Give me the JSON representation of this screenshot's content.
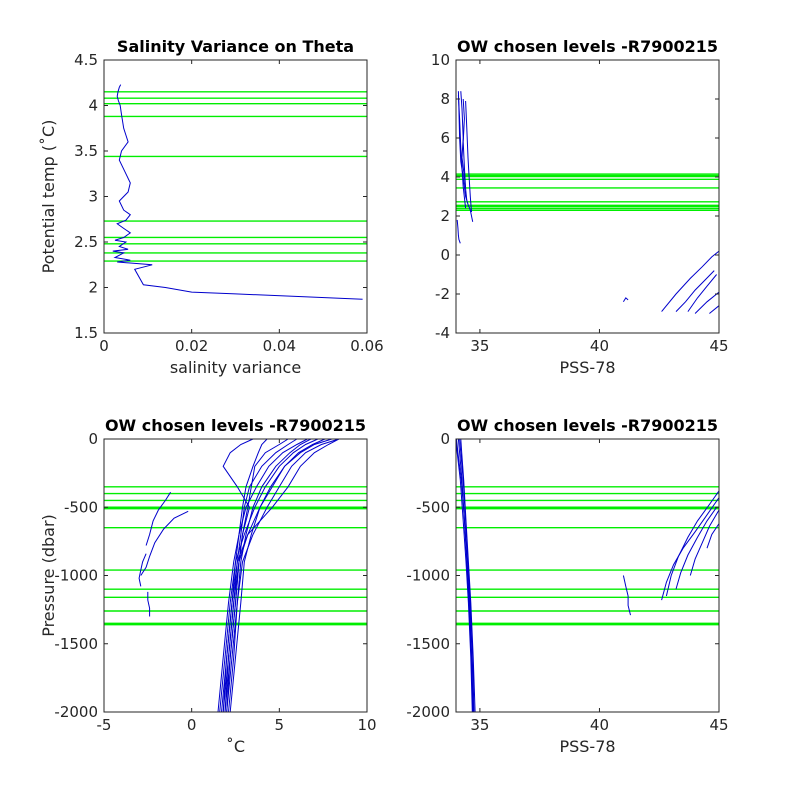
{
  "colors": {
    "profile": "#0000cc",
    "chosen_level": "#00ee00",
    "axis": "#262626",
    "background": "#ffffff"
  },
  "chart_data": [
    {
      "id": "p1",
      "type": "line",
      "title": "Salinity Variance on Theta",
      "xlabel": "salinity variance",
      "ylabel": "Potential temp (˚C)",
      "xlim": [
        0,
        0.06
      ],
      "ylim": [
        1.5,
        4.5
      ],
      "xticks": [
        0,
        0.02,
        0.04,
        0.06
      ],
      "xtick_labels": [
        "0",
        "0.02",
        "0.04",
        "0.06"
      ],
      "yticks": [
        1.5,
        2,
        2.5,
        3,
        3.5,
        4,
        4.5
      ],
      "ytick_labels": [
        "1.5",
        "2",
        "2.5",
        "3",
        "3.5",
        "4",
        "4.5"
      ],
      "grid": false,
      "chosen_levels": [
        4.15,
        4.08,
        4.02,
        3.88,
        3.44,
        2.73,
        2.55,
        2.48,
        2.38,
        2.29
      ],
      "series": [
        {
          "x": [
            0.0038,
            0.0035,
            0.0032,
            0.003,
            0.0033,
            0.0037,
            0.004,
            0.0045,
            0.0055,
            0.004,
            0.0035,
            0.0045,
            0.006,
            0.0055,
            0.0035,
            0.0045,
            0.006,
            0.005,
            0.003,
            0.0045,
            0.006,
            0.0045,
            0.0025,
            0.005,
            0.0035,
            0.0055,
            0.002,
            0.0045,
            0.0025,
            0.006,
            0.003,
            0.011,
            0.007,
            0.009,
            0.014,
            0.02,
            0.03,
            0.045,
            0.059
          ],
          "y": [
            4.23,
            4.2,
            4.15,
            4.1,
            4.05,
            4.0,
            3.9,
            3.75,
            3.6,
            3.5,
            3.4,
            3.3,
            3.15,
            3.05,
            2.95,
            2.85,
            2.8,
            2.74,
            2.7,
            2.65,
            2.6,
            2.55,
            2.52,
            2.5,
            2.45,
            2.42,
            2.4,
            2.38,
            2.33,
            2.3,
            2.28,
            2.25,
            2.2,
            2.03,
            2.0,
            1.95,
            1.93,
            1.9,
            1.87
          ]
        }
      ]
    },
    {
      "id": "p2",
      "type": "line",
      "title": "OW chosen levels -R7900215",
      "xlabel": "PSS-78",
      "ylabel": "",
      "xlim": [
        34,
        45
      ],
      "ylim": [
        -4,
        10
      ],
      "xticks": [
        35,
        40,
        45
      ],
      "xtick_labels": [
        "35",
        "40",
        "45"
      ],
      "yticks": [
        -4,
        -2,
        0,
        2,
        4,
        6,
        8,
        10
      ],
      "ytick_labels": [
        "-4",
        "-2",
        "0",
        "2",
        "4",
        "6",
        "8",
        "10"
      ],
      "grid": false,
      "chosen_levels": [
        4.15,
        4.08,
        4.02,
        3.88,
        3.44,
        2.73,
        2.55,
        2.48,
        2.38,
        2.29
      ],
      "series": [
        {
          "x": [
            34.1,
            34.12,
            34.15,
            34.2,
            34.3,
            34.35,
            34.4,
            34.5,
            34.6,
            34.7
          ],
          "y": [
            8.4,
            7.5,
            6.0,
            4.8,
            4.0,
            3.5,
            3.0,
            2.6,
            2.3,
            1.7
          ]
        },
        {
          "x": [
            34.1,
            34.15,
            34.2,
            34.25,
            34.3,
            34.4
          ],
          "y": [
            8.2,
            7.0,
            5.5,
            4.5,
            3.5,
            2.4
          ]
        },
        {
          "x": [
            34.2,
            34.25,
            34.3,
            34.25,
            34.35,
            34.45
          ],
          "y": [
            8.4,
            7.5,
            6.0,
            5.0,
            4.0,
            2.8
          ]
        },
        {
          "x": [
            34.3,
            34.35,
            34.3,
            34.35,
            34.4
          ],
          "y": [
            8.0,
            7.0,
            5.8,
            4.5,
            3.4
          ]
        },
        {
          "x": [
            34.4,
            34.45,
            34.5,
            34.55,
            34.6,
            34.65
          ],
          "y": [
            7.9,
            6.5,
            5.0,
            4.0,
            3.0,
            2.2
          ]
        },
        {
          "x": [
            34.05,
            34.08,
            34.1,
            34.12,
            34.18
          ],
          "y": [
            1.8,
            1.4,
            1.0,
            0.8,
            0.6
          ]
        },
        {
          "x": [
            41.0,
            41.1,
            41.2
          ],
          "y": [
            -2.4,
            -2.2,
            -2.3
          ]
        },
        {
          "x": [
            42.6,
            43.2,
            43.8,
            44.3,
            44.7,
            45.0
          ],
          "y": [
            -2.9,
            -2.0,
            -1.2,
            -0.6,
            -0.1,
            0.2
          ]
        },
        {
          "x": [
            43.2,
            43.6,
            44.0,
            44.4,
            44.8
          ],
          "y": [
            -2.9,
            -2.4,
            -1.8,
            -1.3,
            -0.8
          ]
        },
        {
          "x": [
            43.7,
            44.1,
            44.5,
            44.9
          ],
          "y": [
            -2.9,
            -2.2,
            -1.6,
            -1.0
          ]
        },
        {
          "x": [
            44.0,
            44.5,
            45.0
          ],
          "y": [
            -3.0,
            -2.4,
            -1.9
          ]
        },
        {
          "x": [
            44.6,
            45.0
          ],
          "y": [
            -3.0,
            -2.6
          ]
        }
      ]
    },
    {
      "id": "p3",
      "type": "line",
      "title": "OW chosen levels -R7900215",
      "xlabel": "˚C",
      "ylabel": "Pressure (dbar)",
      "xlim": [
        -5,
        10
      ],
      "ylim": [
        -2000,
        0
      ],
      "xticks": [
        -5,
        0,
        5,
        10
      ],
      "xtick_labels": [
        "-5",
        "0",
        "5",
        "10"
      ],
      "yticks": [
        -2000,
        -1500,
        -1000,
        -500,
        0
      ],
      "ytick_labels": [
        "-2000",
        "-1500",
        "-1000",
        "-500",
        "0"
      ],
      "grid": false,
      "chosen_levels": [
        -350,
        -400,
        -450,
        -500,
        -510,
        -650,
        -960,
        -1100,
        -1160,
        -1260,
        -1350,
        -1360
      ],
      "series": [
        {
          "x": [
            1.6,
            1.9,
            2.2,
            2.5,
            3.0,
            3.6,
            4.2,
            5.0,
            5.8,
            6.5,
            7.2
          ],
          "y": [
            -2000,
            -1600,
            -1200,
            -900,
            -700,
            -500,
            -350,
            -200,
            -100,
            -40,
            0
          ]
        },
        {
          "x": [
            1.8,
            2.1,
            2.4,
            2.7,
            3.2,
            3.9,
            4.6,
            5.3,
            6.2,
            7.0,
            8.0
          ],
          "y": [
            -2000,
            -1600,
            -1200,
            -900,
            -700,
            -500,
            -350,
            -200,
            -100,
            -40,
            0
          ]
        },
        {
          "x": [
            2.0,
            2.3,
            2.6,
            2.9,
            3.5,
            4.3,
            5.0,
            5.7,
            6.5,
            7.4,
            8.4
          ],
          "y": [
            -2000,
            -1600,
            -1200,
            -900,
            -700,
            -500,
            -350,
            -200,
            -100,
            -40,
            0
          ]
        },
        {
          "x": [
            1.7,
            2.0,
            2.3,
            2.6,
            2.8,
            3.0,
            3.3,
            4.0,
            4.8,
            5.5,
            6.0
          ],
          "y": [
            -2000,
            -1600,
            -1200,
            -900,
            -700,
            -500,
            -350,
            -200,
            -100,
            -40,
            0
          ]
        },
        {
          "x": [
            1.9,
            2.2,
            2.5,
            2.7,
            2.9,
            3.2,
            3.4,
            3.6,
            4.2,
            5.0,
            5.5
          ],
          "y": [
            -2000,
            -1600,
            -1200,
            -900,
            -700,
            -500,
            -350,
            -200,
            -100,
            -40,
            0
          ]
        },
        {
          "x": [
            2.1,
            2.4,
            2.6,
            2.8,
            3.1,
            3.5,
            4.0,
            4.8,
            5.6,
            6.2,
            6.8
          ],
          "y": [
            -2000,
            -1600,
            -1200,
            -900,
            -700,
            -500,
            -350,
            -200,
            -100,
            -40,
            0
          ]
        },
        {
          "x": [
            1.5,
            1.8,
            2.1,
            2.4,
            2.7,
            3.1,
            3.7,
            4.4,
            5.2,
            6.0,
            6.6
          ],
          "y": [
            -2000,
            -1600,
            -1200,
            -900,
            -700,
            -500,
            -350,
            -200,
            -100,
            -40,
            0
          ]
        },
        {
          "x": [
            2.2,
            2.5,
            2.8,
            3.0,
            3.4,
            3.9,
            4.5,
            5.3,
            6.1,
            6.9,
            7.6
          ],
          "y": [
            -2000,
            -1600,
            -1200,
            -900,
            -700,
            -500,
            -350,
            -200,
            -100,
            -40,
            0
          ]
        },
        {
          "x": [
            1.8,
            2.0,
            2.3,
            2.5,
            2.7,
            2.9,
            3.1,
            3.5,
            3.8,
            4.0,
            4.3
          ],
          "y": [
            -2000,
            -1600,
            -1200,
            -900,
            -700,
            -500,
            -350,
            -200,
            -100,
            -40,
            0
          ]
        },
        {
          "x": [
            2.0,
            2.2,
            2.5,
            2.7,
            2.9,
            3.3,
            2.6,
            1.8,
            2.2,
            2.8,
            3.5
          ],
          "y": [
            -2000,
            -1600,
            -1200,
            -900,
            -700,
            -500,
            -350,
            -200,
            -100,
            -40,
            0
          ]
        },
        {
          "x": [
            1.9,
            2.1,
            2.4,
            2.6,
            3.2,
            4.6,
            5.5,
            6.2,
            7.0,
            7.8,
            8.4
          ],
          "y": [
            -2000,
            -1600,
            -1200,
            -900,
            -700,
            -500,
            -350,
            -200,
            -100,
            -40,
            0
          ]
        },
        {
          "x": [
            -1.2,
            -1.5,
            -1.9,
            -2.2,
            -2.4,
            -2.6
          ],
          "y": [
            -390,
            -450,
            -520,
            -600,
            -700,
            -780
          ]
        },
        {
          "x": [
            -0.2,
            -1.0,
            -1.6,
            -2.1,
            -2.4,
            -2.6,
            -2.9
          ],
          "y": [
            -530,
            -580,
            -660,
            -760,
            -860,
            -940,
            -1000
          ]
        },
        {
          "x": [
            -2.6,
            -2.8,
            -2.9,
            -3.0,
            -2.9
          ],
          "y": [
            -840,
            -900,
            -960,
            -1020,
            -1080
          ]
        },
        {
          "x": [
            -2.5,
            -2.5,
            -2.4,
            -2.4
          ],
          "y": [
            -1120,
            -1180,
            -1240,
            -1300
          ]
        }
      ]
    },
    {
      "id": "p4",
      "type": "line",
      "title": "OW chosen levels -R7900215",
      "xlabel": "PSS-78",
      "ylabel": "",
      "xlim": [
        34,
        45
      ],
      "ylim": [
        -2000,
        0
      ],
      "xticks": [
        35,
        40,
        45
      ],
      "xtick_labels": [
        "35",
        "40",
        "45"
      ],
      "yticks": [
        -2000,
        -1500,
        -1000,
        -500,
        0
      ],
      "ytick_labels": [
        "-2000",
        "-1500",
        "-1000",
        "-500",
        "0"
      ],
      "grid": false,
      "chosen_levels": [
        -350,
        -400,
        -450,
        -500,
        -510,
        -650,
        -960,
        -1100,
        -1160,
        -1260,
        -1350,
        -1360
      ],
      "series": [
        {
          "x": [
            34.7,
            34.65,
            34.55,
            34.45,
            34.35,
            34.25,
            34.15,
            34.1
          ],
          "y": [
            -2000,
            -1600,
            -1200,
            -900,
            -600,
            -300,
            -100,
            0
          ]
        },
        {
          "x": [
            34.75,
            34.7,
            34.6,
            34.5,
            34.4,
            34.3,
            34.2,
            34.15
          ],
          "y": [
            -2000,
            -1600,
            -1200,
            -900,
            -600,
            -300,
            -100,
            0
          ]
        },
        {
          "x": [
            34.72,
            34.66,
            34.57,
            34.47,
            34.36,
            34.22,
            34.08,
            34.02
          ],
          "y": [
            -2000,
            -1600,
            -1200,
            -900,
            -600,
            -300,
            -100,
            0
          ]
        },
        {
          "x": [
            34.8,
            34.72,
            34.62,
            34.52,
            34.42,
            34.32,
            34.24,
            34.2
          ],
          "y": [
            -2000,
            -1600,
            -1200,
            -900,
            -600,
            -300,
            -100,
            0
          ]
        },
        {
          "x": [
            34.68,
            34.62,
            34.52,
            34.42,
            34.3,
            34.18,
            34.05,
            34.0
          ],
          "y": [
            -2000,
            -1600,
            -1200,
            -900,
            -600,
            -300,
            -100,
            0
          ]
        },
        {
          "x": [
            41.0,
            41.1,
            41.2,
            41.2,
            41.3
          ],
          "y": [
            -1000,
            -1080,
            -1150,
            -1220,
            -1290
          ]
        },
        {
          "x": [
            42.6,
            42.8,
            43.1,
            43.5,
            44.0,
            44.4,
            44.8,
            45.0
          ],
          "y": [
            -1180,
            -1050,
            -920,
            -800,
            -680,
            -580,
            -480,
            -430
          ]
        },
        {
          "x": [
            43.2,
            43.4,
            43.7,
            44.1,
            44.5,
            44.9
          ],
          "y": [
            -1100,
            -980,
            -850,
            -720,
            -600,
            -500
          ]
        },
        {
          "x": [
            43.8,
            44.0,
            44.3,
            44.6,
            45.0
          ],
          "y": [
            -1000,
            -880,
            -760,
            -640,
            -520
          ]
        },
        {
          "x": [
            42.8,
            43.0,
            43.3,
            43.7,
            44.1,
            44.6,
            45.0
          ],
          "y": [
            -1150,
            -1000,
            -860,
            -720,
            -600,
            -480,
            -380
          ]
        },
        {
          "x": [
            44.5,
            44.7,
            45.0
          ],
          "y": [
            -800,
            -700,
            -620
          ]
        }
      ]
    }
  ]
}
